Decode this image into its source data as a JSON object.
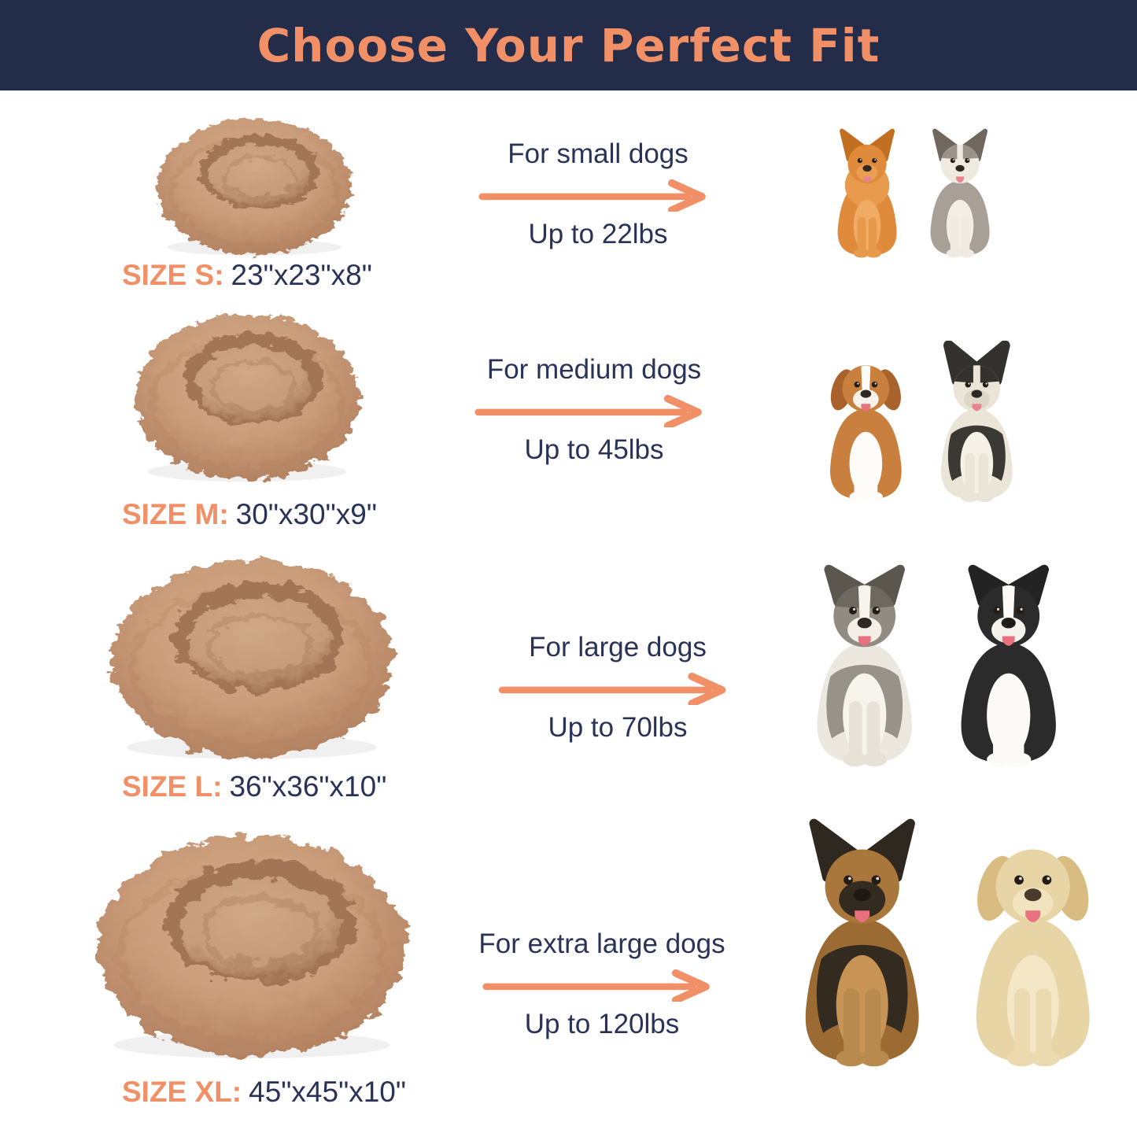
{
  "header": {
    "title": "Choose Your Perfect Fit"
  },
  "colors": {
    "accent": "#F19066",
    "navy": "#232C49",
    "text": "#2A3357"
  },
  "bed": {
    "description": "tan plush donut dog bed",
    "outer_light": "#D8AF8E",
    "outer": "#CA9D7B",
    "outer_dark": "#B2805F",
    "cavity": "#A17456",
    "center": "#C59C7C",
    "center_light": "#D0A987"
  },
  "rows": [
    {
      "size_label": "SIZE S:",
      "dimensions": "23\"x23\"x8\"",
      "audience": "For small dogs",
      "weight": "Up to 22lbs",
      "dogs": [
        {
          "breed": "pomeranian",
          "ears": "pointy",
          "ear_color": "#C06F23",
          "body": "#E08A3C",
          "ruff": "#E89B4D",
          "chest": "#F0AC63",
          "legs": "#E59A4C",
          "head": "#E08A3C",
          "muzzle": "#E99E52",
          "nose": "#33261E",
          "tongue": "#E9848E"
        },
        {
          "breed": "yorkshire-terrier",
          "ears": "pointy",
          "ear_color": "#70685E",
          "body": "#A8A096",
          "chest": "#F2EEE6",
          "legs": "#EFEBE2",
          "head": "#EFEAE0",
          "head_patches": "#9B938A",
          "muzzle": "#EFEAE0",
          "nose": "#2E2723",
          "tongue": "#E9848E"
        }
      ]
    },
    {
      "size_label": "SIZE M:",
      "dimensions": "30\"x30\"x9\"",
      "audience": "For medium dogs",
      "weight": "Up to 45lbs",
      "dogs": [
        {
          "breed": "beagle",
          "ears": "floppy",
          "ear_color": "#A9622B",
          "body": "#C9803F",
          "chest": "#FDFCF9",
          "legs": "#FDFCF9",
          "head": "#C9803F",
          "blaze": "#FDFCF9",
          "muzzle": "#F8F3EA",
          "nose": "#2E2723",
          "tongue": "#E9707E"
        },
        {
          "breed": "french-bulldog",
          "ears": "bat",
          "ear_color": "#33322E",
          "body": "#EAE5D7",
          "saddle": "#3A3934",
          "chest": "#F5F1E7",
          "legs": "#EAE5D7",
          "head": "#EAE5D7",
          "head_patches": "#33322E",
          "muzzle": "#DDD7C8",
          "nose": "#2A2925",
          "tongue": "#E9848E"
        }
      ]
    },
    {
      "size_label": "SIZE L:",
      "dimensions": "36\"x36\"x10\"",
      "audience": "For large dogs",
      "weight": "Up to 70lbs",
      "dogs": [
        {
          "breed": "australian-shepherd",
          "ears": "fold",
          "ear_color": "#5B564E",
          "body": "#ECE8E0",
          "saddle": "#97928A",
          "chest": "#F7F4EE",
          "legs": "#E8E2D6",
          "head": "#918B81",
          "head_patches": "#6E6960",
          "blaze": "#F7F4EE",
          "muzzle": "#F3EFE7",
          "nose": "#2E2723",
          "tongue": "#E9707E"
        },
        {
          "breed": "border-collie",
          "ears": "fold",
          "ear_color": "#232323",
          "body": "#2B2B2B",
          "chest": "#FBFAF7",
          "legs": "#FBFAF7",
          "head": "#2B2B2B",
          "blaze": "#FBFAF7",
          "muzzle": "#F6F3EC",
          "nose": "#1E1B18",
          "tongue": "#E9707E"
        }
      ]
    },
    {
      "size_label": "SIZE XL:",
      "dimensions": "45\"x45\"x10\"",
      "audience": "For extra large dogs",
      "weight": "Up to 120lbs",
      "dogs": [
        {
          "breed": "german-shepherd",
          "ears": "pointy",
          "ear_color": "#2F2820",
          "body": "#9C6A33",
          "saddle": "#332B20",
          "chest": "#C79455",
          "legs": "#B98A4E",
          "head": "#A9763C",
          "mask": "#332B20",
          "muzzle": "#A9763C",
          "nose": "#1E1915",
          "tongue": "#E9707E"
        },
        {
          "breed": "golden-retriever",
          "ears": "floppy",
          "ear_color": "#D8BC82",
          "body": "#E8D5A6",
          "chest": "#F3E7C6",
          "legs": "#EBDAB0",
          "head": "#E8D5A6",
          "muzzle": "#F0E3BE",
          "nose": "#4A3B2C",
          "tongue": "#E9707E"
        }
      ]
    }
  ]
}
